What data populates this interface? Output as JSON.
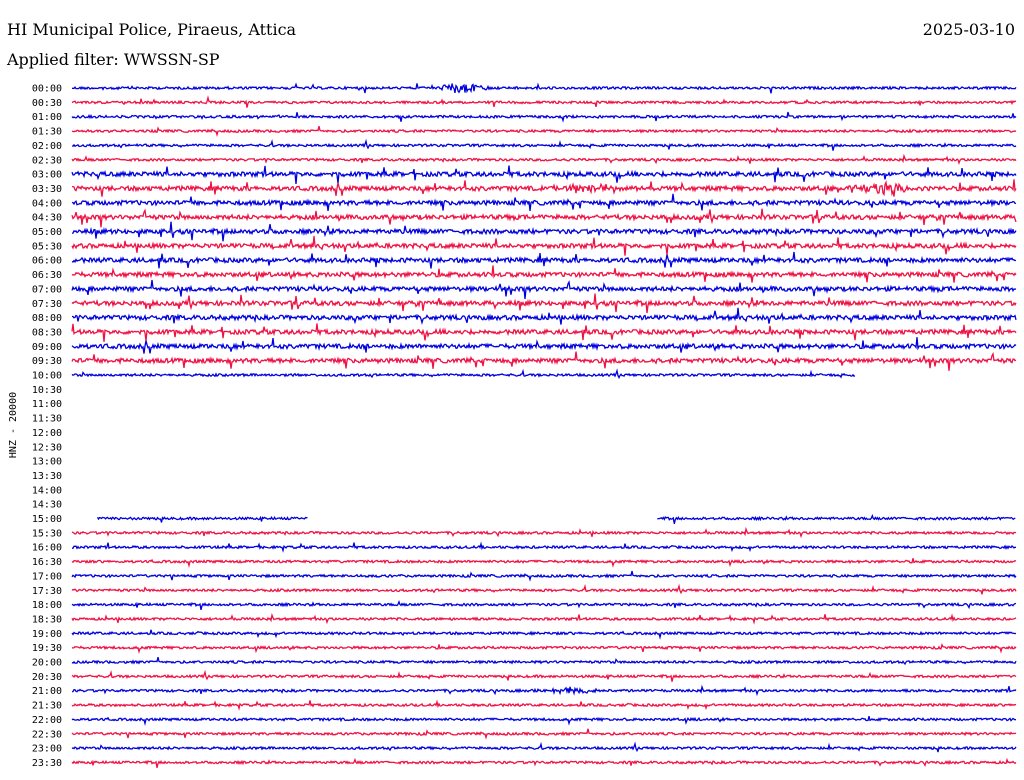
{
  "header": {
    "title": "HI Municipal Police, Piraeus, Attica",
    "date": "2025-03-10",
    "filter": "Applied filter: WWSSN-SP"
  },
  "chart_data": {
    "type": "line",
    "title": "HI Municipal Police, Piraeus, Attica",
    "ylabel": "HNZ - 20000",
    "row_labels": [
      "00:00",
      "00:30",
      "01:00",
      "01:30",
      "02:00",
      "02:30",
      "03:00",
      "03:30",
      "04:00",
      "04:30",
      "05:00",
      "05:30",
      "06:00",
      "06:30",
      "07:00",
      "07:30",
      "08:00",
      "08:30",
      "09:00",
      "09:30",
      "10:00",
      "10:30",
      "11:00",
      "11:30",
      "12:00",
      "12:30",
      "13:00",
      "13:30",
      "14:00",
      "14:30",
      "15:00",
      "15:30",
      "16:00",
      "16:30",
      "17:00",
      "17:30",
      "18:00",
      "18:30",
      "19:00",
      "19:30",
      "20:00",
      "20:30",
      "21:00",
      "21:30",
      "22:00",
      "22:30",
      "23:00",
      "23:30"
    ],
    "colors": [
      "#0000dd",
      "#ee1144"
    ],
    "noise_levels": [
      1,
      1,
      1,
      1,
      1,
      1,
      2,
      2,
      2,
      2,
      2,
      2,
      2,
      2,
      2,
      2,
      2,
      2,
      2,
      2,
      1,
      0,
      0,
      0,
      0,
      0,
      0,
      0,
      0,
      0,
      1,
      1,
      1,
      1,
      1,
      1,
      1,
      1,
      1,
      1,
      1,
      1,
      1,
      1,
      1,
      1,
      1,
      1
    ],
    "data_segments": {
      "20": [
        0,
        0.83
      ],
      "30": [
        [
          0.027,
          0.25
        ],
        [
          0.62,
          1.0
        ]
      ]
    },
    "events": [
      {
        "row": 0,
        "at": 0.41,
        "size": 5,
        "width": 0.08
      },
      {
        "row": 7,
        "at": 0.55,
        "size": 5,
        "width": 0.1
      },
      {
        "row": 7,
        "at": 0.86,
        "size": 6,
        "width": 0.1
      },
      {
        "row": 42,
        "at": 0.53,
        "size": 3,
        "width": 0.09
      }
    ]
  }
}
